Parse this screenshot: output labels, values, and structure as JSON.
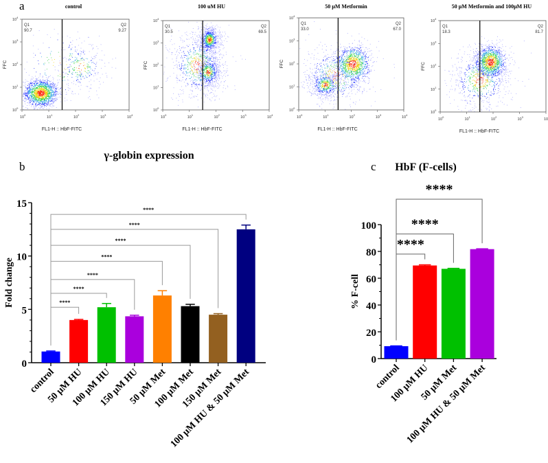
{
  "panel_labels": {
    "a": "a",
    "b": "b",
    "c": "c"
  },
  "chart_data": [
    {
      "type": "scatter",
      "panel": "a",
      "title": "control",
      "xlabel": "FL1-H :: HbF-FITC",
      "ylabel": "FFC",
      "xscale": "log",
      "yscale": "log",
      "xlim": [
        1,
        10000
      ],
      "ylim": [
        1,
        10000
      ],
      "tick_labels": [
        "10",
        "10",
        "10",
        "10",
        "10"
      ],
      "tick_exponents": [
        "0",
        "1",
        "2",
        "3",
        "4"
      ],
      "gate_x": 31.6,
      "quadrants": [
        {
          "name": "Q1",
          "value": "90.7"
        },
        {
          "name": "Q2",
          "value": "9.27"
        }
      ],
      "clusters": [
        {
          "cx": 0.7,
          "cy": 0.75,
          "sx": 0.32,
          "sy": 0.3,
          "n": 1500
        },
        {
          "cx": 2.2,
          "cy": 1.9,
          "sx": 0.45,
          "sy": 0.55,
          "n": 260
        },
        {
          "cx": 1.4,
          "cy": 2.0,
          "sx": 0.8,
          "sy": 0.9,
          "n": 160
        }
      ]
    },
    {
      "type": "scatter",
      "panel": "a",
      "title": "100 uM HU",
      "xlabel": "FL1-H :: HbF-FITC",
      "ylabel": "FFC",
      "xscale": "log",
      "yscale": "log",
      "xlim": [
        1,
        10000
      ],
      "ylim": [
        1,
        10000
      ],
      "tick_labels": [
        "10",
        "10",
        "10",
        "10",
        "10"
      ],
      "tick_exponents": [
        "0",
        "1",
        "2",
        "3",
        "4"
      ],
      "gate_x": 31.6,
      "quadrants": [
        {
          "name": "Q1",
          "value": "30.5"
        },
        {
          "name": "Q2",
          "value": "69.5"
        }
      ],
      "clusters": [
        {
          "cx": 1.75,
          "cy": 3.15,
          "sx": 0.2,
          "sy": 0.3,
          "n": 800
        },
        {
          "cx": 1.7,
          "cy": 1.7,
          "sx": 0.25,
          "sy": 0.35,
          "n": 700
        },
        {
          "cx": 1.3,
          "cy": 2.0,
          "sx": 0.55,
          "sy": 0.8,
          "n": 700
        }
      ]
    },
    {
      "type": "scatter",
      "panel": "a",
      "title": "50 μM Metformin",
      "xlabel": "FL1-H :: HbF-FITC",
      "ylabel": "FFC",
      "xscale": "log",
      "yscale": "log",
      "xlim": [
        1,
        10000
      ],
      "ylim": [
        1,
        10000
      ],
      "tick_labels": [
        "10",
        "10",
        "10",
        "10",
        "10"
      ],
      "tick_exponents": [
        "0",
        "1",
        "2",
        "3",
        "4"
      ],
      "gate_x": 31.6,
      "quadrants": [
        {
          "name": "Q1",
          "value": "33.0"
        },
        {
          "name": "Q2",
          "value": "67.0"
        }
      ],
      "clusters": [
        {
          "cx": 2.05,
          "cy": 2.0,
          "sx": 0.33,
          "sy": 0.4,
          "n": 1100
        },
        {
          "cx": 1.0,
          "cy": 1.1,
          "sx": 0.3,
          "sy": 0.3,
          "n": 600
        },
        {
          "cx": 1.4,
          "cy": 1.5,
          "sx": 0.7,
          "sy": 0.7,
          "n": 500
        }
      ]
    },
    {
      "type": "scatter",
      "panel": "a",
      "title": "50 μM Metformin and 100μM HU",
      "xlabel": "FL1-H :: HbF-FITC",
      "ylabel": "FFC",
      "xscale": "log",
      "yscale": "log",
      "xlim": [
        1,
        10000
      ],
      "ylim": [
        1,
        10000
      ],
      "tick_labels": [
        "10",
        "10",
        "10",
        "10",
        "10"
      ],
      "tick_exponents": [
        "0",
        "1",
        "2",
        "3",
        "4"
      ],
      "gate_x": 31.6,
      "quadrants": [
        {
          "name": "Q1",
          "value": "18.3"
        },
        {
          "name": "Q2",
          "value": "81.7"
        }
      ],
      "clusters": [
        {
          "cx": 1.9,
          "cy": 2.2,
          "sx": 0.28,
          "sy": 0.35,
          "n": 1200
        },
        {
          "cx": 1.5,
          "cy": 1.4,
          "sx": 0.6,
          "sy": 0.7,
          "n": 700
        }
      ]
    },
    {
      "type": "bar",
      "panel": "b",
      "title": "γ-globin expression",
      "xlabel": "",
      "ylabel": "Fold change",
      "ylim": [
        0,
        15
      ],
      "yticks": [
        "0",
        "5",
        "10",
        "15"
      ],
      "categories": [
        "control",
        "50 μM HU",
        "100 μM HU",
        "150 μM HU",
        "50 μM Met",
        "100 μM Met",
        "150 μM Met",
        "100 μM HU & 50 μM Met"
      ],
      "values": [
        1.05,
        4.0,
        5.2,
        4.35,
        6.3,
        5.3,
        4.5,
        12.5
      ],
      "errors": [
        0.05,
        0.06,
        0.35,
        0.1,
        0.45,
        0.17,
        0.1,
        0.4
      ],
      "colors": [
        "#0000ff",
        "#ff0000",
        "#00c000",
        "#aa00dd",
        "#ff8000",
        "#000000",
        "#936020",
        "#000080"
      ],
      "significance": [
        {
          "from": 0,
          "to": 1,
          "level": 5.2,
          "label": "****"
        },
        {
          "from": 0,
          "to": 2,
          "level": 6.5,
          "label": "****"
        },
        {
          "from": 0,
          "to": 3,
          "level": 7.8,
          "label": "****"
        },
        {
          "from": 0,
          "to": 4,
          "level": 9.5,
          "label": "****"
        },
        {
          "from": 0,
          "to": 5,
          "level": 11.0,
          "label": "****"
        },
        {
          "from": 0,
          "to": 6,
          "level": 12.5,
          "label": "****"
        },
        {
          "from": 0,
          "to": 7,
          "level": 13.9,
          "label": "****"
        }
      ]
    },
    {
      "type": "bar",
      "panel": "c",
      "title": "HbF (F-cells)",
      "xlabel": "",
      "ylabel": "% F-cell",
      "ylim": [
        0,
        100
      ],
      "yticks": [
        "0",
        "20",
        "40",
        "60",
        "80",
        "100"
      ],
      "categories": [
        "control",
        "100 μM HU",
        "50 μM Met",
        "100 μM HU & 50 μM Met"
      ],
      "values": [
        9.27,
        69.5,
        67.0,
        81.7
      ],
      "errors": [
        0.2,
        0.5,
        0.4,
        0.3
      ],
      "colors": [
        "#0000ff",
        "#ff0000",
        "#00c000",
        "#aa00dd"
      ],
      "significance": [
        {
          "from": 0,
          "to": 1,
          "level": 78,
          "label": "****"
        },
        {
          "from": 0,
          "to": 2,
          "level": 93,
          "label": "****"
        },
        {
          "from": 0,
          "to": 3,
          "level": 119,
          "label": "****"
        }
      ]
    }
  ]
}
